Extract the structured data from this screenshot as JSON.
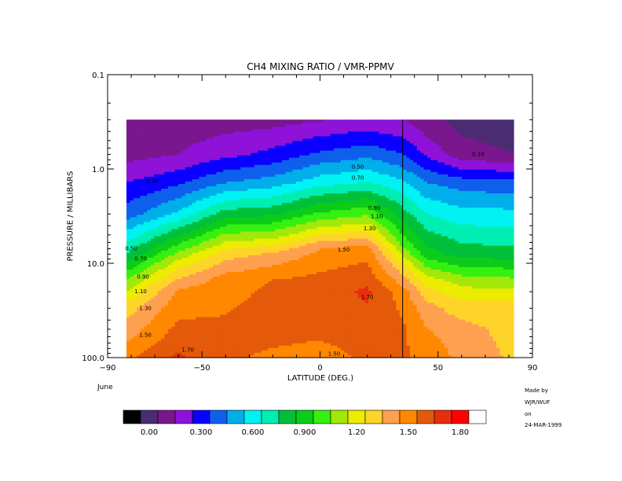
{
  "chart_data": {
    "type": "heatmap",
    "title": "CH4 MIXING RATIO / VMR-PPMV",
    "xlabel": "LATITUDE (DEG.)",
    "ylabel": "PRESSURE / MILLIBARS",
    "xlim": [
      -90,
      90
    ],
    "ylim": [
      100.0,
      0.1
    ],
    "y_scale": "log",
    "x_ticks": [
      "−90",
      "−50",
      "0",
      "50",
      "90"
    ],
    "x_tick_values": [
      -90,
      -50,
      0,
      50,
      90
    ],
    "y_ticks": [
      "0.1",
      "1.0",
      "10.0",
      "100.0"
    ],
    "y_tick_values": [
      0.1,
      1.0,
      10.0,
      100.0
    ],
    "month": "June",
    "credit": [
      "Made by",
      "WJR/WUF",
      "on",
      "24-MAR-1999"
    ],
    "data_lat_range": [
      -82,
      82
    ],
    "data_pressure_range": [
      100.0,
      0.3
    ],
    "vertical_line_lat": 35,
    "contour_labels": [
      {
        "text": "0.10",
        "lat": 67,
        "p": 0.7
      },
      {
        "text": "0.30",
        "lat": -71,
        "p": 1.35
      },
      {
        "text": "0.50",
        "lat": 16,
        "p": 0.95
      },
      {
        "text": "0.70",
        "lat": 16,
        "p": 1.25
      },
      {
        "text": "0.90",
        "lat": 23,
        "p": 2.6
      },
      {
        "text": "1.10",
        "lat": 24,
        "p": 3.2
      },
      {
        "text": "1.30",
        "lat": 21,
        "p": 4.3
      },
      {
        "text": "1.50",
        "lat": 10,
        "p": 7.2
      },
      {
        "text": "1.70",
        "lat": 20,
        "p": 23
      },
      {
        "text": "1.70",
        "lat": -56,
        "p": 83
      },
      {
        "text": "1.50",
        "lat": 6,
        "p": 92
      },
      {
        "text": "1.30",
        "lat": -74,
        "p": 30
      },
      {
        "text": "1.50",
        "lat": -74,
        "p": 58
      },
      {
        "text": "1.10",
        "lat": -76,
        "p": 20
      },
      {
        "text": "0.90",
        "lat": -75,
        "p": 14
      },
      {
        "text": "0.70",
        "lat": -76,
        "p": 9
      },
      {
        "text": "0.50",
        "lat": -80,
        "p": 7
      }
    ],
    "levels": [
      -0.1,
      0.0,
      0.1,
      0.2,
      0.3,
      0.4,
      0.5,
      0.6,
      0.7,
      0.8,
      0.9,
      1.0,
      1.1,
      1.2,
      1.3,
      1.4,
      1.5,
      1.6,
      1.7,
      1.8,
      1.9
    ],
    "colorbar": {
      "colors": [
        "#000000",
        "#4b2c72",
        "#7a168e",
        "#8e12d8",
        "#0a00ff",
        "#0e60ec",
        "#00aeea",
        "#00f2f2",
        "#00eeb2",
        "#00c03a",
        "#0ccc1a",
        "#36f010",
        "#a2e80a",
        "#ecec00",
        "#ffd42a",
        "#ffa050",
        "#ff8800",
        "#e45a0a",
        "#e82e0e",
        "#ff0000",
        "#ffffff"
      ],
      "tick_labels": [
        "0.00",
        "0.300",
        "0.600",
        "0.900",
        "1.20",
        "1.50",
        "1.80"
      ],
      "tick_values": [
        0.0,
        0.3,
        0.6,
        0.9,
        1.2,
        1.5,
        1.8
      ]
    },
    "profile_lats": [
      -82,
      -60,
      -40,
      -20,
      0,
      20,
      35,
      45,
      60,
      82
    ],
    "profiles": [
      {
        "lat": -82,
        "rows": [
          [
            0.3,
            0.12
          ],
          [
            0.7,
            0.16
          ],
          [
            1.4,
            0.3
          ],
          [
            3.0,
            0.45
          ],
          [
            8.0,
            0.8
          ],
          [
            15.0,
            1.1
          ],
          [
            30.0,
            1.35
          ],
          [
            70.0,
            1.5
          ],
          [
            100.0,
            1.58
          ]
        ]
      },
      {
        "lat": -60,
        "rows": [
          [
            0.3,
            0.14
          ],
          [
            0.7,
            0.2
          ],
          [
            1.4,
            0.38
          ],
          [
            3.0,
            0.62
          ],
          [
            6.0,
            0.98
          ],
          [
            10.0,
            1.25
          ],
          [
            20.0,
            1.52
          ],
          [
            60.0,
            1.65
          ],
          [
            100.0,
            1.72
          ]
        ]
      },
      {
        "lat": -40,
        "rows": [
          [
            0.3,
            0.15
          ],
          [
            0.7,
            0.27
          ],
          [
            1.4,
            0.5
          ],
          [
            3.0,
            0.85
          ],
          [
            5.0,
            1.12
          ],
          [
            8.0,
            1.35
          ],
          [
            15.0,
            1.55
          ],
          [
            50.0,
            1.62
          ],
          [
            100.0,
            1.62
          ]
        ]
      },
      {
        "lat": -20,
        "rows": [
          [
            0.3,
            0.16
          ],
          [
            0.7,
            0.33
          ],
          [
            1.4,
            0.55
          ],
          [
            3.0,
            0.88
          ],
          [
            5.5,
            1.2
          ],
          [
            8.0,
            1.42
          ],
          [
            15.0,
            1.6
          ],
          [
            40.0,
            1.66
          ],
          [
            100.0,
            1.58
          ]
        ]
      },
      {
        "lat": 0,
        "rows": [
          [
            0.3,
            0.19
          ],
          [
            0.7,
            0.42
          ],
          [
            1.4,
            0.66
          ],
          [
            3.0,
            1.02
          ],
          [
            5.0,
            1.3
          ],
          [
            7.0,
            1.5
          ],
          [
            15.0,
            1.63
          ],
          [
            40.0,
            1.66
          ],
          [
            100.0,
            1.55
          ]
        ]
      },
      {
        "lat": 20,
        "rows": [
          [
            0.3,
            0.22
          ],
          [
            0.7,
            0.47
          ],
          [
            1.4,
            0.71
          ],
          [
            3.0,
            1.08
          ],
          [
            5.0,
            1.35
          ],
          [
            7.0,
            1.55
          ],
          [
            20.0,
            1.72
          ],
          [
            50.0,
            1.66
          ],
          [
            100.0,
            1.62
          ]
        ]
      },
      {
        "lat": 35,
        "rows": [
          [
            0.3,
            0.2
          ],
          [
            0.7,
            0.4
          ],
          [
            1.4,
            0.62
          ],
          [
            3.0,
            0.85
          ],
          [
            6.0,
            1.05
          ],
          [
            10.0,
            1.3
          ],
          [
            20.0,
            1.55
          ],
          [
            50.0,
            1.62
          ],
          [
            100.0,
            1.62
          ]
        ]
      },
      {
        "lat": 45,
        "rows": [
          [
            0.3,
            0.13
          ],
          [
            0.7,
            0.28
          ],
          [
            1.4,
            0.5
          ],
          [
            3.0,
            0.7
          ],
          [
            8.0,
            0.95
          ],
          [
            15.0,
            1.25
          ],
          [
            30.0,
            1.45
          ],
          [
            60.0,
            1.52
          ],
          [
            100.0,
            1.55
          ]
        ]
      },
      {
        "lat": 60,
        "rows": [
          [
            0.3,
            0.06
          ],
          [
            0.7,
            0.14
          ],
          [
            1.4,
            0.45
          ],
          [
            3.0,
            0.64
          ],
          [
            8.0,
            0.86
          ],
          [
            15.0,
            1.15
          ],
          [
            25.0,
            1.3
          ],
          [
            50.0,
            1.45
          ],
          [
            100.0,
            1.48
          ]
        ]
      },
      {
        "lat": 82,
        "rows": [
          [
            0.3,
            0.05
          ],
          [
            0.7,
            0.1
          ],
          [
            1.4,
            0.43
          ],
          [
            3.0,
            0.63
          ],
          [
            8.0,
            0.84
          ],
          [
            15.0,
            1.12
          ],
          [
            25.0,
            1.3
          ],
          [
            50.0,
            1.35
          ],
          [
            100.0,
            1.38
          ]
        ]
      }
    ]
  }
}
